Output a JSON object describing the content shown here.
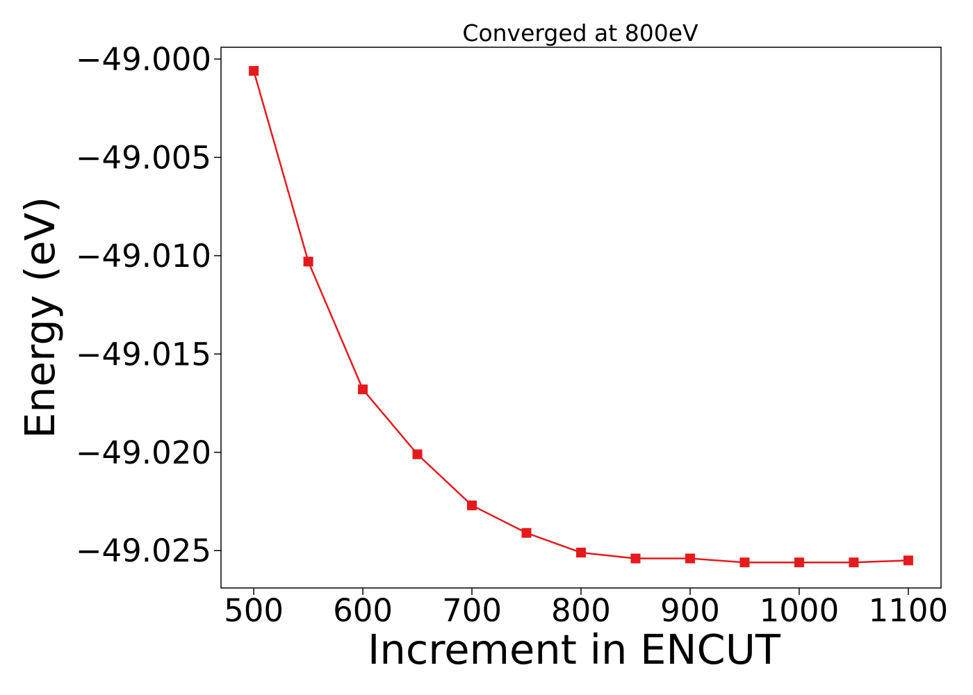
{
  "chart_data": {
    "type": "line",
    "title": "Converged at 800eV",
    "xlabel": "Increment in ENCUT",
    "ylabel": "Energy (eV)",
    "x": [
      500,
      550,
      600,
      650,
      700,
      750,
      800,
      850,
      900,
      950,
      1000,
      1050,
      1100
    ],
    "series": [
      {
        "values": [
          -49.0006,
          -49.0103,
          -49.0168,
          -49.0201,
          -49.0227,
          -49.0241,
          -49.0251,
          -49.0254,
          -49.0254,
          -49.0256,
          -49.0256,
          -49.0256,
          -49.0255
        ],
        "color": "#e41a1c",
        "marker": "square"
      }
    ],
    "xlim": [
      470,
      1130
    ],
    "ylim": [
      -49.0269,
      -48.9994
    ],
    "xticks": [
      500,
      600,
      700,
      800,
      900,
      1000,
      1100
    ],
    "yticks": [
      -49.0,
      -49.005,
      -49.01,
      -49.015,
      -49.02,
      -49.025
    ],
    "ytick_labels": [
      "−49.000",
      "−49.005",
      "−49.010",
      "−49.015",
      "−49.020",
      "−49.025"
    ],
    "grid": false,
    "legend": "none"
  }
}
